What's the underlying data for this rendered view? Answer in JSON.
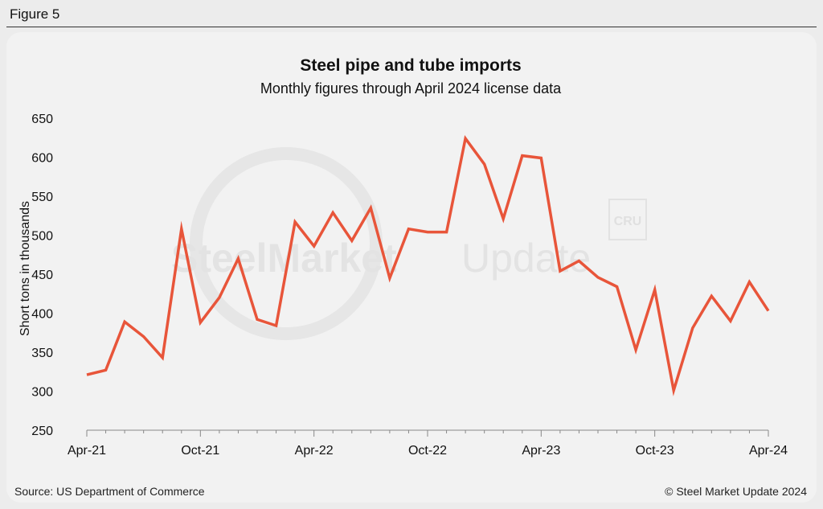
{
  "figure_label": "Figure 5",
  "chart_data": {
    "type": "line",
    "title": "Steel pipe and tube imports",
    "subtitle": "Monthly figures through April 2024 license data",
    "ylabel": "Short tons in thousands",
    "xlabel": "",
    "ylim": [
      250,
      650
    ],
    "yticks": [
      250,
      300,
      350,
      400,
      450,
      500,
      550,
      600,
      650
    ],
    "xtick_labels": [
      "Apr-21",
      "Oct-21",
      "Apr-22",
      "Oct-22",
      "Apr-23",
      "Oct-23",
      "Apr-24"
    ],
    "grid": false,
    "line_color": "#e8553a",
    "x": [
      "Apr-21",
      "May-21",
      "Jun-21",
      "Jul-21",
      "Aug-21",
      "Sep-21",
      "Oct-21",
      "Nov-21",
      "Dec-21",
      "Jan-22",
      "Feb-22",
      "Mar-22",
      "Apr-22",
      "May-22",
      "Jun-22",
      "Jul-22",
      "Aug-22",
      "Sep-22",
      "Oct-22",
      "Nov-22",
      "Dec-22",
      "Jan-23",
      "Feb-23",
      "Mar-23",
      "Apr-23",
      "May-23",
      "Jun-23",
      "Jul-23",
      "Aug-23",
      "Sep-23",
      "Oct-23",
      "Nov-23",
      "Dec-23",
      "Jan-24",
      "Feb-24",
      "Mar-24",
      "Apr-24"
    ],
    "values": [
      321,
      327,
      389,
      370,
      343,
      508,
      388,
      420,
      470,
      392,
      384,
      517,
      486,
      529,
      493,
      535,
      445,
      508,
      504,
      504,
      624,
      591,
      521,
      602,
      599,
      454,
      467,
      446,
      434,
      353,
      430,
      301,
      381,
      422,
      390,
      440,
      403
    ]
  },
  "watermark": {
    "text_bold": "SteelMarket",
    "text_light": "Update",
    "logo": "CRU"
  },
  "footer": {
    "source": "Source: US Department of Commerce",
    "copyright": "© Steel Market Update 2024"
  }
}
